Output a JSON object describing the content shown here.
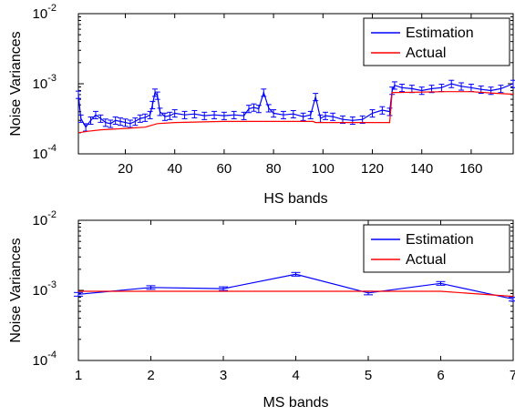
{
  "chart_data": [
    {
      "type": "line",
      "xlabel": "HS bands",
      "ylabel": "Noise Variances",
      "xlim": [
        1,
        177
      ],
      "ylim": [
        0.0001,
        0.01
      ],
      "yscale": "log",
      "xticks": [
        20,
        40,
        60,
        80,
        100,
        120,
        140,
        160
      ],
      "yticks": [
        {
          "value": 0.0001,
          "base": "10",
          "exp": "-4"
        },
        {
          "value": 0.001,
          "base": "10",
          "exp": "-3"
        },
        {
          "value": 0.01,
          "base": "10",
          "exp": "-2"
        }
      ],
      "grid": false,
      "legend": "top-right",
      "series": [
        {
          "name": "Estimation",
          "color": "#0000ff",
          "x": [
            1,
            2,
            4,
            6,
            8,
            10,
            12,
            14,
            16,
            18,
            20,
            22,
            24,
            26,
            28,
            30,
            31,
            32,
            33,
            34,
            36,
            38,
            40,
            44,
            48,
            52,
            56,
            60,
            64,
            68,
            70,
            72,
            74,
            76,
            78,
            80,
            84,
            88,
            92,
            95,
            97,
            99,
            101,
            104,
            108,
            112,
            116,
            120,
            124,
            127,
            128,
            129,
            132,
            136,
            140,
            144,
            148,
            152,
            156,
            160,
            164,
            168,
            172,
            177
          ],
          "y": [
            0.0007,
            0.00032,
            0.00024,
            0.0003,
            0.00036,
            0.00032,
            0.00028,
            0.00027,
            0.0003,
            0.00029,
            0.00028,
            0.00027,
            0.00029,
            0.00032,
            0.00033,
            0.00036,
            0.0005,
            0.00075,
            0.00068,
            0.0004,
            0.00034,
            0.00035,
            0.00038,
            0.00036,
            0.00037,
            0.00035,
            0.00036,
            0.00035,
            0.00036,
            0.00035,
            0.00044,
            0.00046,
            0.00044,
            0.00075,
            0.00045,
            0.00038,
            0.00036,
            0.00037,
            0.00034,
            0.00036,
            0.00065,
            0.00032,
            0.00035,
            0.00034,
            0.00031,
            0.0003,
            0.00031,
            0.00038,
            0.00042,
            0.0004,
            0.0008,
            0.00095,
            0.00088,
            0.00085,
            0.0008,
            0.00085,
            0.00088,
            0.001,
            0.00092,
            0.00088,
            0.00083,
            0.0008,
            0.00085,
            0.001
          ],
          "error_fraction": 0.12
        },
        {
          "name": "Actual",
          "color": "#ff0000",
          "x": [
            1,
            5,
            10,
            20,
            28,
            33,
            40,
            60,
            80,
            96,
            97,
            100,
            115,
            127,
            128,
            130,
            150,
            160,
            170,
            177
          ],
          "y": [
            0.0002,
            0.00021,
            0.00022,
            0.00023,
            0.00024,
            0.00027,
            0.00028,
            0.00029,
            0.00029,
            0.00029,
            0.00028,
            0.00028,
            0.00028,
            0.00028,
            0.00075,
            0.00075,
            0.00077,
            0.00077,
            0.00073,
            0.00071
          ]
        }
      ]
    },
    {
      "type": "line",
      "xlabel": "MS bands",
      "ylabel": "Noise Variances",
      "xlim": [
        1,
        7
      ],
      "ylim": [
        0.0001,
        0.01
      ],
      "yscale": "log",
      "xticks": [
        1,
        2,
        3,
        4,
        5,
        6,
        7
      ],
      "yticks": [
        {
          "value": 0.0001,
          "base": "10",
          "exp": "-4"
        },
        {
          "value": 0.001,
          "base": "10",
          "exp": "-3"
        },
        {
          "value": 0.01,
          "base": "10",
          "exp": "-2"
        }
      ],
      "grid": false,
      "legend": "top-right",
      "series": [
        {
          "name": "Estimation",
          "color": "#0000ff",
          "x": [
            1,
            2,
            3,
            4,
            5,
            6,
            7
          ],
          "y": [
            0.00088,
            0.0011,
            0.00106,
            0.0017,
            0.00092,
            0.00126,
            0.00075
          ],
          "error_fraction": 0.06
        },
        {
          "name": "Actual",
          "color": "#ff0000",
          "x": [
            1,
            2,
            3,
            4,
            5,
            6,
            7
          ],
          "y": [
            0.00097,
            0.00097,
            0.00097,
            0.00097,
            0.00097,
            0.00097,
            0.00082
          ]
        }
      ]
    }
  ]
}
